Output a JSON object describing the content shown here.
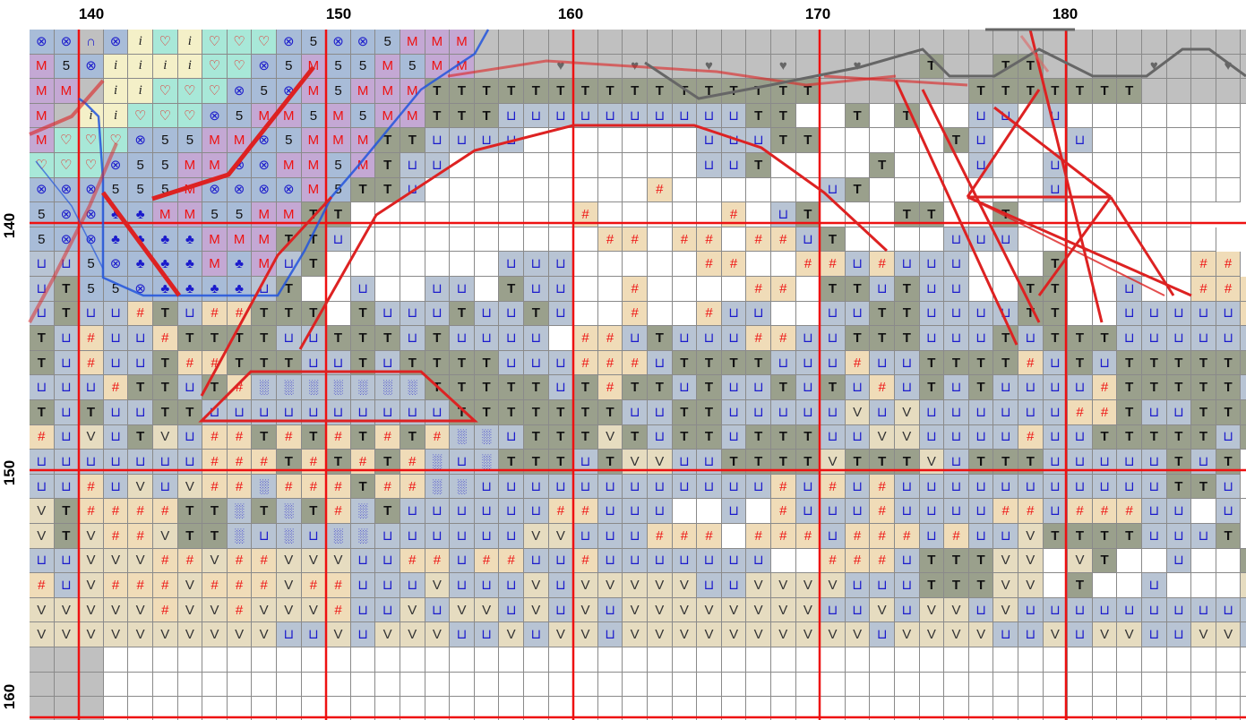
{
  "axes": {
    "top_labels": [
      "140",
      "150",
      "160",
      "170",
      "180"
    ],
    "left_labels": [
      "140",
      "150",
      "160"
    ]
  },
  "legend": {
    "U": {
      "symbol": "⊔",
      "fill": "#b8c4d4",
      "color": "#1a1acc"
    },
    "T": {
      "symbol": "T",
      "fill": "#9aa08c",
      "color": "#111111"
    },
    "#": {
      "symbol": "#",
      "fill": "#f0dcb8",
      "color": "#ee1111"
    },
    "V": {
      "symbol": "V",
      "fill": "#e6dcc0",
      "color": "#333333"
    },
    "5": {
      "symbol": "5",
      "fill": "#a8bcd8",
      "color": "#111111"
    },
    "M": {
      "symbol": "M",
      "fill": "#c4a8d4",
      "color": "#ee1111"
    },
    "X": {
      "symbol": "⊗",
      "fill": "#a8bcd8",
      "color": "#1a1acc"
    },
    "C": {
      "symbol": "♣",
      "fill": "#a8bcd8",
      "color": "#1a1acc"
    },
    "H": {
      "symbol": "♡",
      "fill": "#a8e8d8",
      "color": "#ee1111"
    },
    "I": {
      "symbol": "i",
      "fill": "#f4f0c8",
      "color": "#222222"
    },
    "D": {
      "symbol": "░",
      "fill": "#b8c4d4",
      "color": "#1a1acc"
    },
    "K": {
      "symbol": "♥",
      "fill": "#c0c0c0",
      "color": "#666666"
    },
    "O": {
      "symbol": "⊙",
      "fill": "#a8e8d8",
      "color": "#1a1acc"
    },
    "N": {
      "symbol": "∩",
      "fill": "#c0c0c0",
      "color": "#1a1acc"
    },
    ".": {
      "symbol": "",
      "fill": "#ffffff",
      "color": "#000000"
    },
    "G": {
      "symbol": "",
      "fill": "#c0c0c0",
      "color": "#000000"
    }
  },
  "rows": [
    "XXNXIHIHHHX5XX5MMMGGGGGGGGGGGGGGGGGGGGGGGGGGGGGGGG",
    "M5XIIIIHHX5M55M5MMGGGKGGKGGKGGKGGKGGTGGTTGGGGKGGKGGGGGGG",
    "MMGIIHHHX5XM5MMMTTTTTTTTTTTTTTTTGGGGGGTTTTTTTGGGGG",
    "MGIIHHHX5MM5M5MMTTTUUUUUUUUUUTT..T.T..UU.U.......",
    "MHHHX55MMX5MMMTTUUUU.......UUUTT.....TU...U......",
    "HHHX55MMXXMM5MTUU..........UUT....T...U..U.......",
    "XXX555MXXXXM5TTU.........#......UT.......U.......",
    "5XXCCMM55MMTT.........#.....#.UT...TT..T.......",
    "5XXCCCCMMMTTU..........##.##.##UT....UUU........",
    "UU5XCCCMCMUT.......UUU.....##..##U#UUU...T.....##",
    "UT55XCCCCUT..U..UU.TUU..#....##.TTUTUU..TT..U..###",
    "UTUU#TU##TTT.TUUUTUUTU..#..#UU..UUTTUUUUTT..UUUUU#",
    "TU#UU#TTTTUUTTTUTUUUU.##UTUUU##UUTTTUUUTUTTTUUUUUU",
    "TU#UUT##TTTUUTUTTTTUUU###UTTTTUUU#UUTTTT#UTUTTTTTTU",
    "UUU#TTUT#DDDDDDDTTTTTUT#TTUTUUTUTU#UTUTUUUU#TTTTTUTTU",
    "TUTUUTTUUUUUUUUUUTTTTTTTUUTTUUUUUVUVUUUUUU##TUUTTTUTU",
    "#UVUTVU##T#T#T#T#DDUTTTVTUTTUTTTUUVVUUUU#UUTTTTTUT",
    "UUUUUUU###T#T#T#DUDTTTUTVVUUTTTTVTTTVUTTTUUUUUTUT",
    "UU#UVUV##D###T##DDUUUUUUUUUUUU#U#U#UUUUUUUUUUUTTU.",
    "VT####TTDTDT#DTUUUUUU##UUU..U.#UUU#UUUU##U###UU.U",
    "VTV##VTTDUDUDDUUUUUUVVUUU###.###U###U#UUVTTTTUUUT...",
    "UUVVV##V##VVVUU##U##UU#UUUUUUU..###UTTTVV.VT..U..TT",
    "#UV###V###V##UUUVUUUVUVVVVVUUVVVVUUUTTTVV.T..U...V",
    "VVVVV#VV#VVV#UUVUVVUVUVUVVVVVVVVUUVUVVUVUUUUUUUUUU",
    "VVVVVVVVVVUUVUVVVUUVUVVUVVVVVVVVVVUVVVVUUVUVVUUVVUV",
    "GGG...............................................",
    "GGG...............................................",
    "GGG...............................................",
    "GGG..............................................."
  ]
}
